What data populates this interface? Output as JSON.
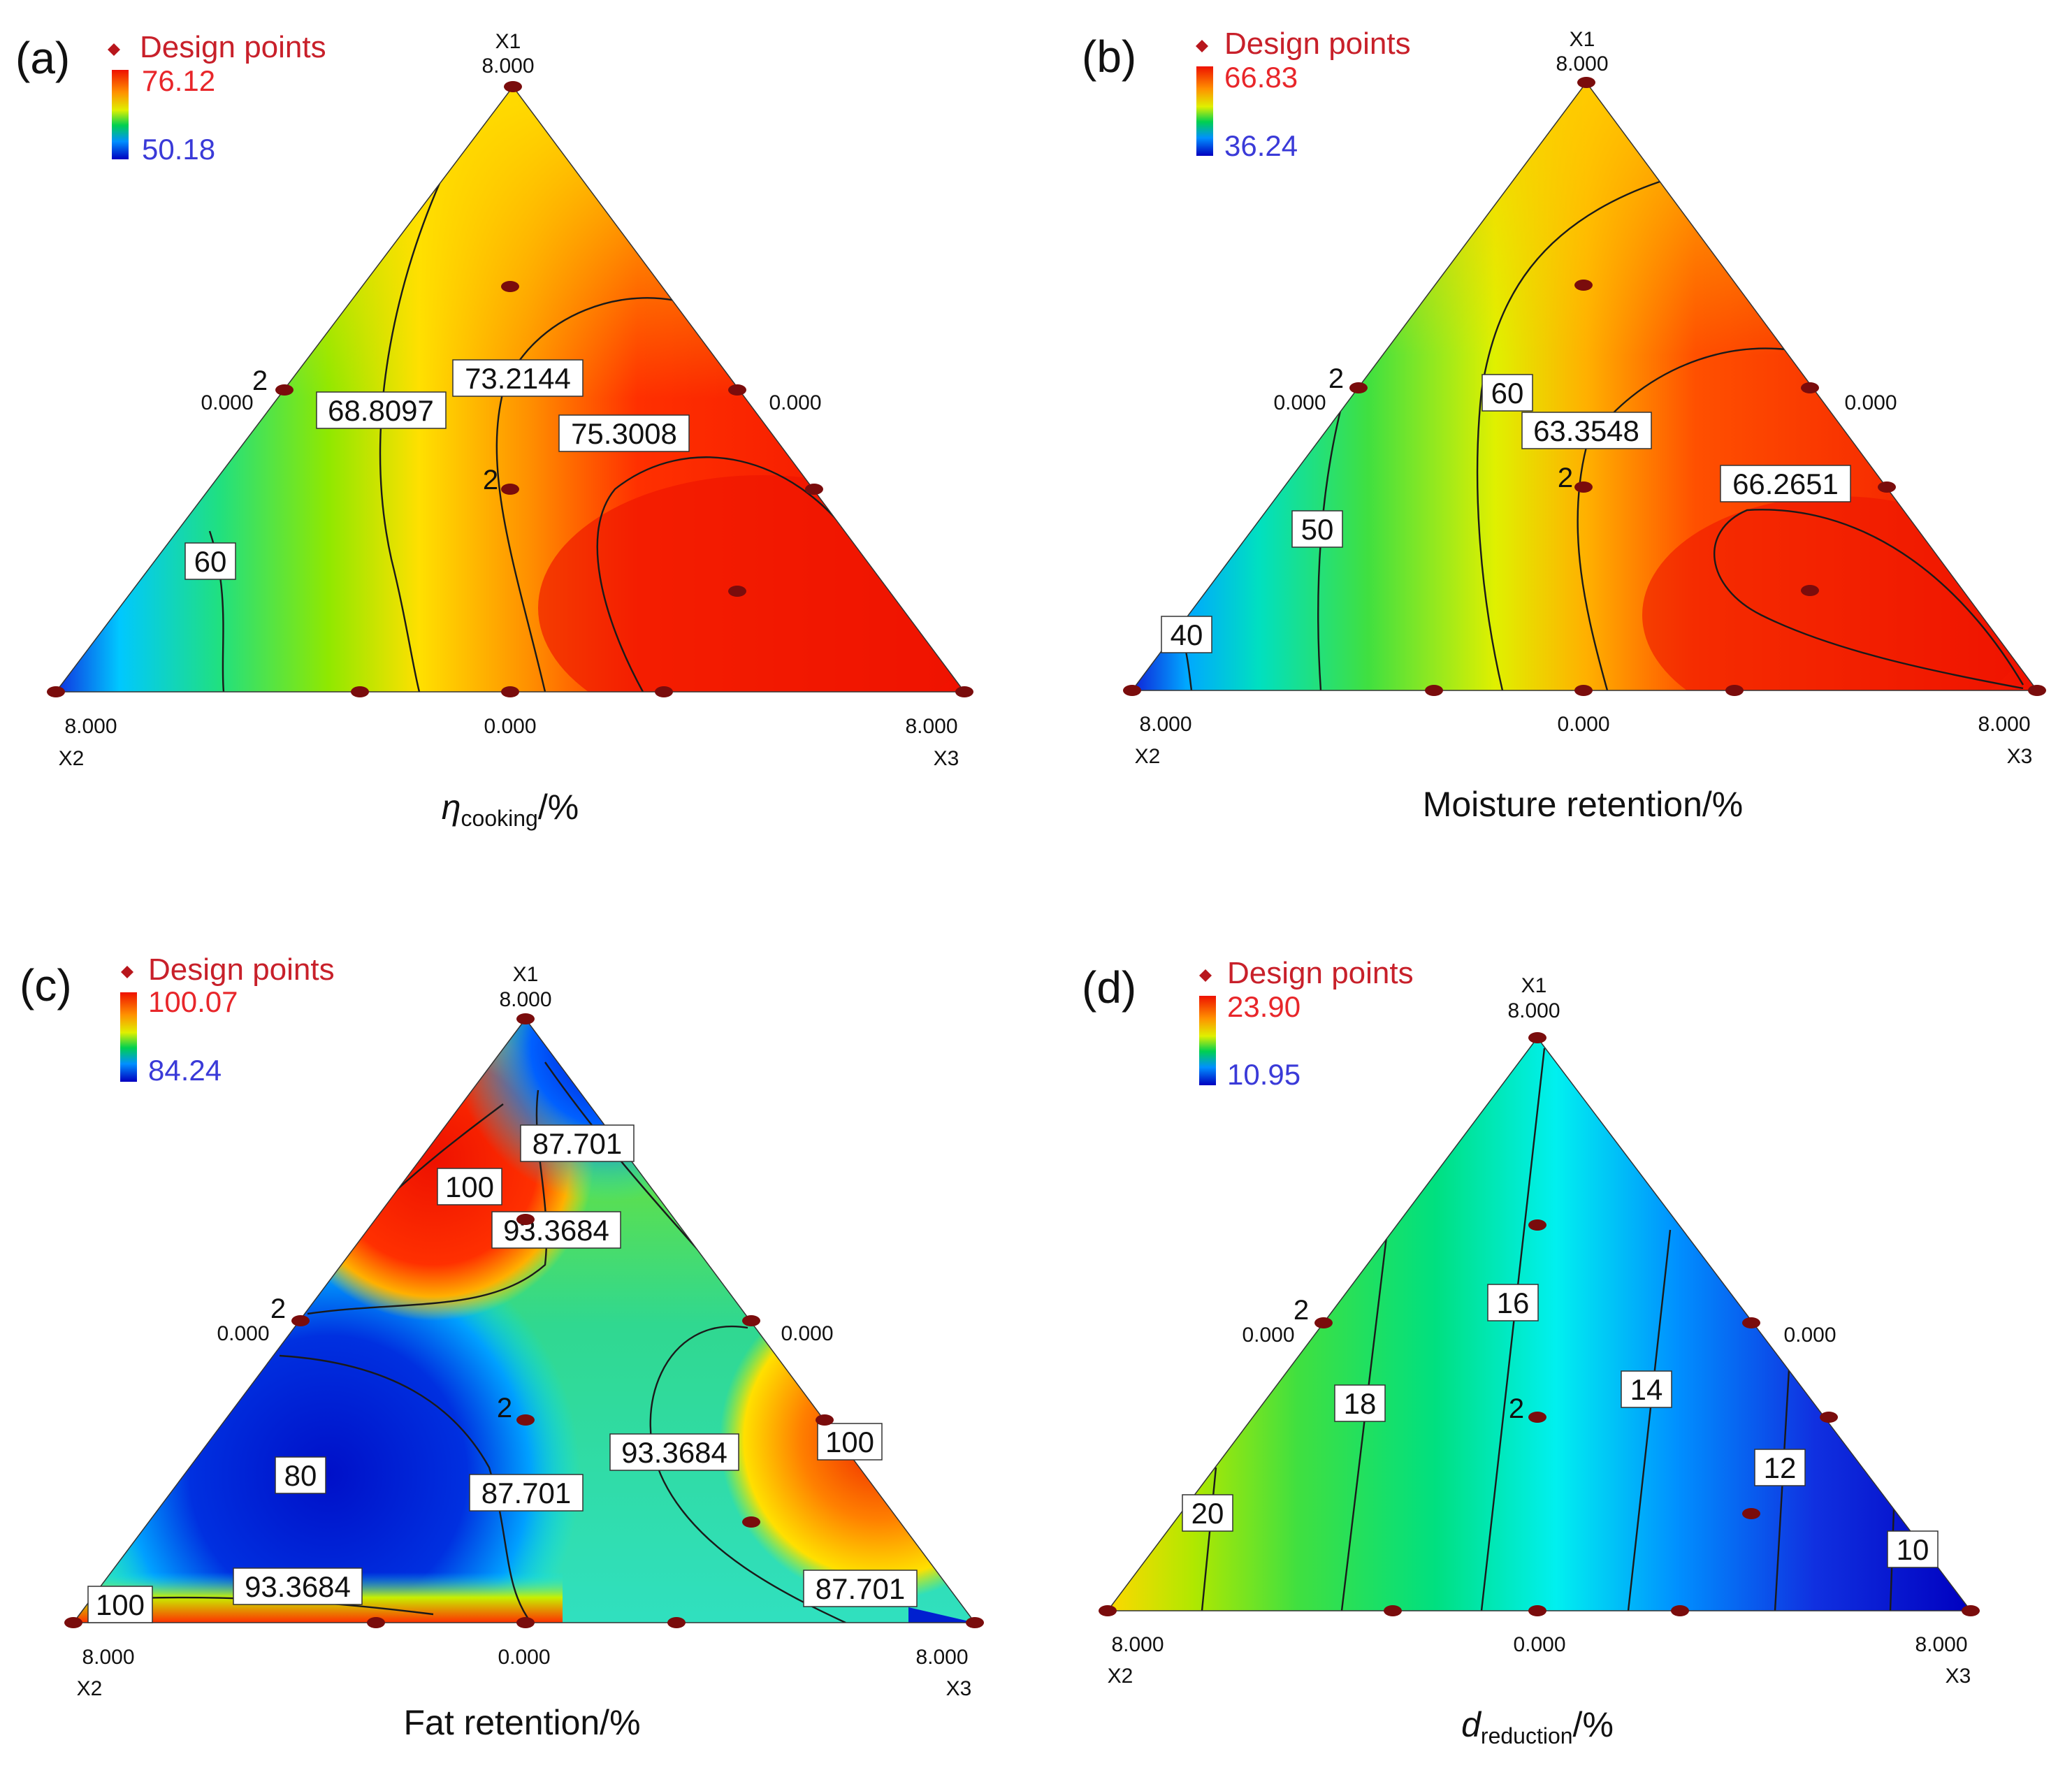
{
  "chart_data": [
    {
      "type": "ternary-contour",
      "panel": "(a)",
      "legend": {
        "title": "Design points",
        "max": "76.12",
        "min": "50.18"
      },
      "xlabel": {
        "main": "η",
        "sub": "cooking",
        "suffix": "/%"
      },
      "vertices": {
        "top": {
          "label": "X1",
          "value": "8.000"
        },
        "left": {
          "label": "X2",
          "value": "8.000"
        },
        "right": {
          "label": "X3",
          "value": "8.000"
        }
      },
      "edge_values": {
        "left_mid": "0.000",
        "right_mid": "0.000",
        "bottom_mid": "0.000"
      },
      "replicate_marks": [
        "2",
        "2"
      ],
      "contour_levels": [
        "60",
        "68.8097",
        "73.2144",
        "75.3008"
      ]
    },
    {
      "type": "ternary-contour",
      "panel": "(b)",
      "legend": {
        "title": "Design points",
        "max": "66.83",
        "min": "36.24"
      },
      "xlabel": {
        "main": "Moisture retention/%",
        "sub": "",
        "suffix": ""
      },
      "vertices": {
        "top": {
          "label": "X1",
          "value": "8.000"
        },
        "left": {
          "label": "X2",
          "value": "8.000"
        },
        "right": {
          "label": "X3",
          "value": "8.000"
        }
      },
      "edge_values": {
        "left_mid": "0.000",
        "right_mid": "0.000",
        "bottom_mid": "0.000"
      },
      "replicate_marks": [
        "2",
        "2"
      ],
      "contour_levels": [
        "40",
        "50",
        "60",
        "63.3548",
        "66.2651"
      ]
    },
    {
      "type": "ternary-contour",
      "panel": "(c)",
      "legend": {
        "title": "Design points",
        "max": "100.07",
        "min": "84.24"
      },
      "xlabel": {
        "main": "Fat retention/%",
        "sub": "",
        "suffix": ""
      },
      "vertices": {
        "top": {
          "label": "X1",
          "value": "8.000"
        },
        "left": {
          "label": "X2",
          "value": "8.000"
        },
        "right": {
          "label": "X3",
          "value": "8.000"
        }
      },
      "edge_values": {
        "left_mid": "0.000",
        "right_mid": "0.000",
        "bottom_mid": "0.000"
      },
      "replicate_marks": [
        "2",
        "2"
      ],
      "contour_levels": [
        "87.701",
        "100",
        "93.3684",
        "93.3684",
        "80",
        "87.701",
        "100",
        "93.3684",
        "100",
        "87.701"
      ]
    },
    {
      "type": "ternary-contour",
      "panel": "(d)",
      "legend": {
        "title": "Design points",
        "max": "23.90",
        "min": "10.95"
      },
      "xlabel": {
        "main": "d",
        "sub": "reduction",
        "suffix": "/%"
      },
      "vertices": {
        "top": {
          "label": "X1",
          "value": "8.000"
        },
        "left": {
          "label": "X2",
          "value": "8.000"
        },
        "right": {
          "label": "X3",
          "value": "8.000"
        }
      },
      "edge_values": {
        "left_mid": "0.000",
        "right_mid": "0.000",
        "bottom_mid": "0.000"
      },
      "replicate_marks": [
        "2",
        "2"
      ],
      "contour_levels": [
        "16",
        "18",
        "14",
        "12",
        "20",
        "10"
      ]
    }
  ],
  "colors": {
    "scale": [
      "#0000c8",
      "#0090ff",
      "#00e8f0",
      "#00d050",
      "#c8f000",
      "#ffe000",
      "#ff8800",
      "#ee1100"
    ],
    "design_point": "#7a0c0c",
    "contour": "#1a1a1a"
  }
}
